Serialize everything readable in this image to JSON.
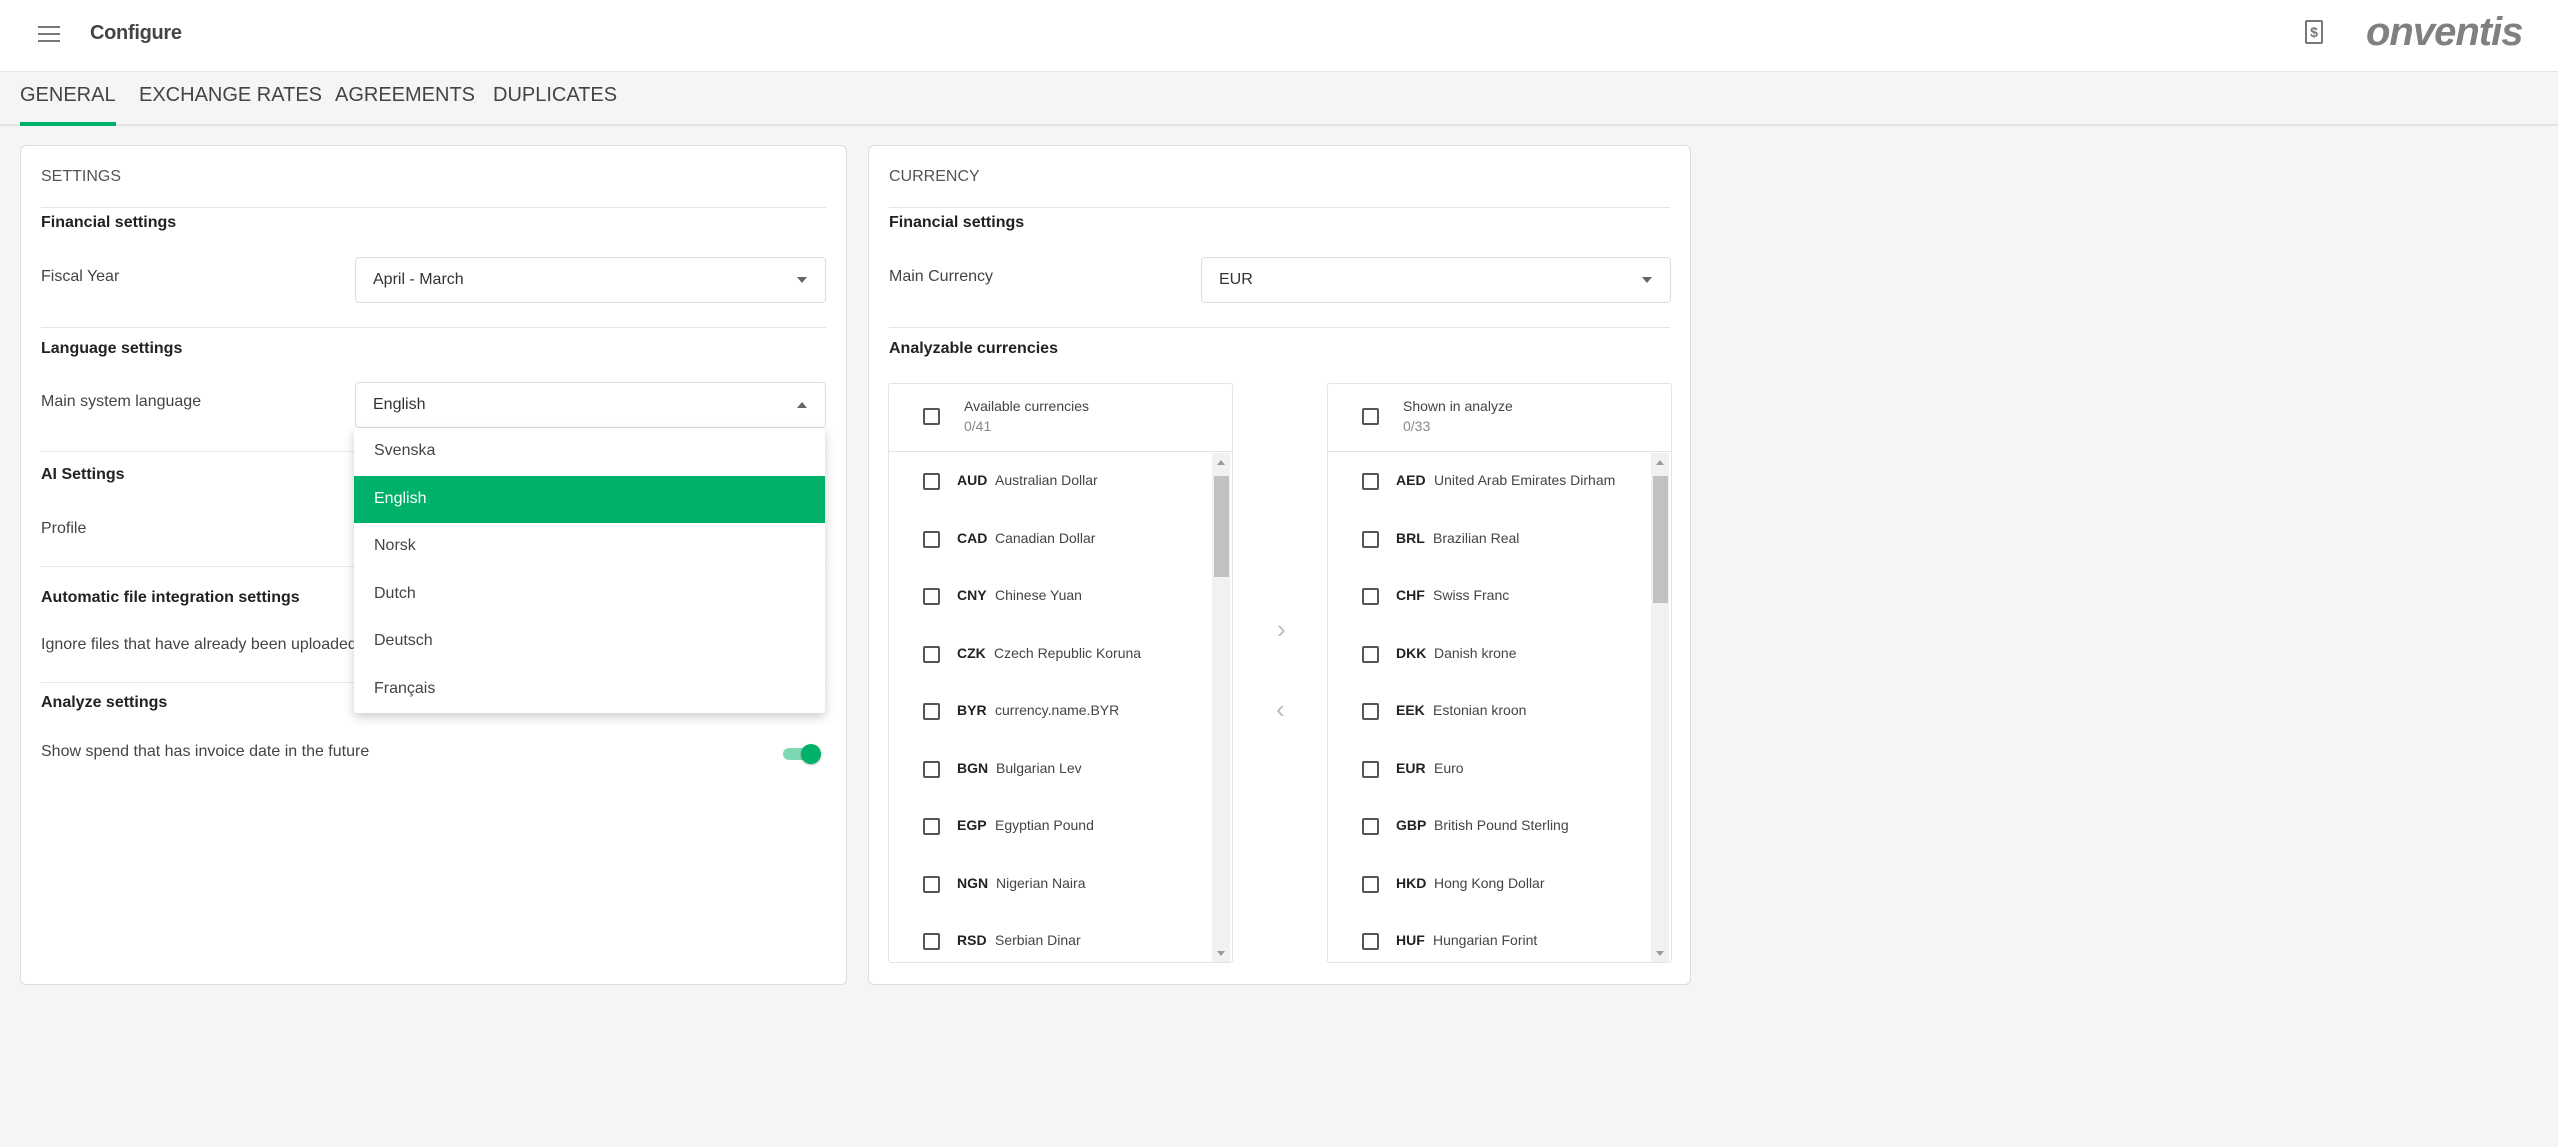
{
  "header": {
    "title": "Configure",
    "logo": "onventis",
    "menu_icon": "hamburger-icon",
    "doc_icon": "invoice-document-icon"
  },
  "tabs": [
    {
      "label": "GENERAL",
      "active": true
    },
    {
      "label": "EXCHANGE RATES"
    },
    {
      "label": "AGREEMENTS"
    },
    {
      "label": "DUPLICATES"
    }
  ],
  "accent": "#00b16a",
  "settings": {
    "title": "SETTINGS",
    "financial": {
      "heading": "Financial settings",
      "fiscal_label": "Fiscal Year",
      "fiscal_value": "April - March"
    },
    "language": {
      "heading": "Language settings",
      "label": "Main system language",
      "value": "English",
      "options": [
        "Svenska",
        "English",
        "Norsk",
        "Dutch",
        "Deutsch",
        "Français"
      ],
      "selected": "English"
    },
    "ai": {
      "heading": "AI Settings",
      "profile_label": "Profile"
    },
    "file": {
      "heading": "Automatic file integration settings",
      "ignore_label": "Ignore files that have already been uploaded"
    },
    "analyze": {
      "heading": "Analyze settings",
      "future_label": "Show spend that has invoice date in the future",
      "future_on": true
    }
  },
  "currency": {
    "title": "CURRENCY",
    "heading": "Financial settings",
    "main_label": "Main Currency",
    "main_value": "EUR",
    "analyzable_heading": "Analyzable currencies",
    "available": {
      "title": "Available currencies",
      "count": "0/41",
      "items": [
        {
          "code": "AUD",
          "name": "Australian Dollar"
        },
        {
          "code": "CAD",
          "name": "Canadian Dollar"
        },
        {
          "code": "CNY",
          "name": "Chinese Yuan"
        },
        {
          "code": "CZK",
          "name": "Czech Republic Koruna"
        },
        {
          "code": "BYR",
          "name": "currency.name.BYR"
        },
        {
          "code": "BGN",
          "name": "Bulgarian Lev"
        },
        {
          "code": "EGP",
          "name": "Egyptian Pound"
        },
        {
          "code": "NGN",
          "name": "Nigerian Naira"
        },
        {
          "code": "RSD",
          "name": "Serbian Dinar"
        }
      ]
    },
    "shown": {
      "title": "Shown in analyze",
      "count": "0/33",
      "items": [
        {
          "code": "AED",
          "name": "United Arab Emirates Dirham"
        },
        {
          "code": "BRL",
          "name": "Brazilian Real"
        },
        {
          "code": "CHF",
          "name": "Swiss Franc"
        },
        {
          "code": "DKK",
          "name": "Danish krone"
        },
        {
          "code": "EEK",
          "name": "Estonian kroon"
        },
        {
          "code": "EUR",
          "name": "Euro"
        },
        {
          "code": "GBP",
          "name": "British Pound Sterling"
        },
        {
          "code": "HKD",
          "name": "Hong Kong Dollar"
        },
        {
          "code": "HUF",
          "name": "Hungarian Forint"
        }
      ]
    },
    "move_right": "›",
    "move_left": "‹"
  }
}
